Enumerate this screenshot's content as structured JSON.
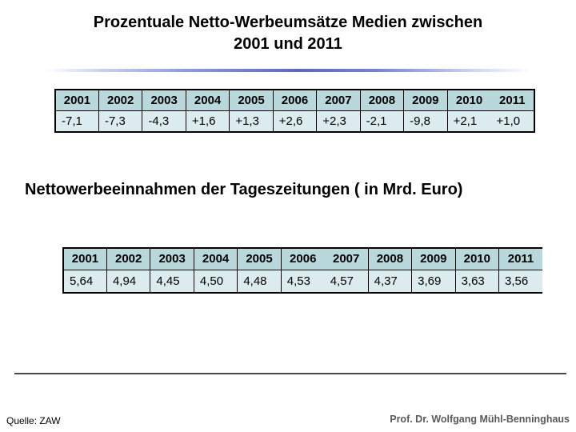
{
  "title": {
    "line1": "Prozentuale Netto-Werbeumsätze Medien zwischen",
    "line2": "2001 und 2011"
  },
  "subtitle": "Nettowerbeeinnahmen der Tageszeitungen ( in Mrd. Euro)",
  "table1": {
    "years": [
      "2001",
      "2002",
      "2003",
      "2004",
      "2005",
      "2006",
      "2007",
      "2008",
      "2009",
      "2010",
      "2011"
    ],
    "values": [
      "-7,1",
      "-7,3",
      "-4,3",
      "+1,6",
      "+1,3",
      "+2,6",
      "+2,3",
      "-2,1",
      "-9,8",
      "+2,1",
      "+1,0"
    ]
  },
  "table2": {
    "years": [
      "2001",
      "2002",
      "2003",
      "2004",
      "2005",
      "2006",
      "2007",
      "2008",
      "2009",
      "2010",
      "2011"
    ],
    "values": [
      "5,64",
      "4,94",
      "4,45",
      "4,50",
      "4,48",
      "4,53",
      "4,57",
      "4,37",
      "3,69",
      "3,63",
      "3,56"
    ]
  },
  "footer": {
    "source": "Quelle: ZAW",
    "author": "Prof. Dr. Wolfgang Mühl-Benninghaus"
  },
  "colors": {
    "table_header_bg": "#b9d8dc",
    "table_row_bg": "#dcecee",
    "table_border": "#000000",
    "title_divider_blue": "#5a69bd",
    "footer_line": "#4a4a4a",
    "author_text": "#595959"
  }
}
